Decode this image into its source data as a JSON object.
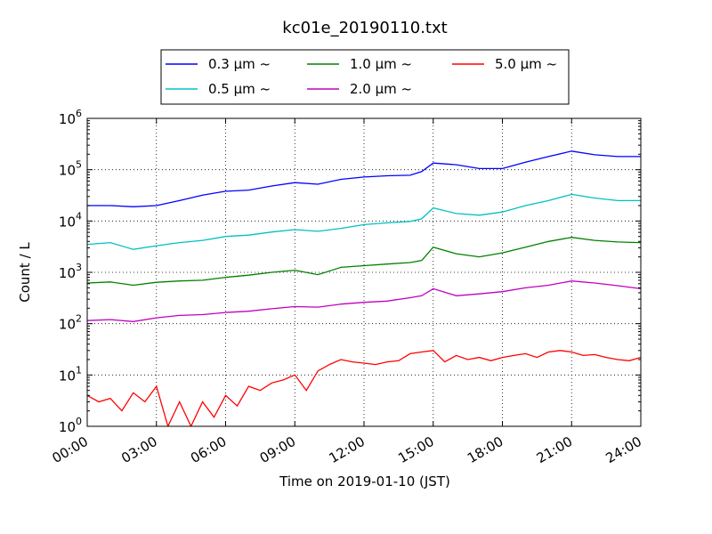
{
  "chart_data": {
    "type": "line",
    "title": "kc01e_20190110.txt",
    "xlabel": "Time on 2019-01-10 (JST)",
    "ylabel": "Count / L",
    "y_scale": "log",
    "ylim": [
      1,
      1000000
    ],
    "y_ticks": [
      {
        "value": 1,
        "base": "10",
        "exp": "0"
      },
      {
        "value": 10,
        "base": "10",
        "exp": "1"
      },
      {
        "value": 100,
        "base": "10",
        "exp": "2"
      },
      {
        "value": 1000,
        "base": "10",
        "exp": "3"
      },
      {
        "value": 10000,
        "base": "10",
        "exp": "4"
      },
      {
        "value": 100000,
        "base": "10",
        "exp": "5"
      },
      {
        "value": 1000000,
        "base": "10",
        "exp": "6"
      }
    ],
    "x_ticks": [
      "00:00",
      "03:00",
      "06:00",
      "09:00",
      "12:00",
      "15:00",
      "18:00",
      "21:00",
      "24:00"
    ],
    "x_tick_hours": [
      0,
      3,
      6,
      9,
      12,
      15,
      18,
      21,
      24
    ],
    "xlim": [
      0,
      24
    ],
    "grid": true,
    "legend_placement": "top-center",
    "series": [
      {
        "name": "0.3 μm ~",
        "color": "#0000ff",
        "points": [
          [
            0,
            20000
          ],
          [
            1,
            20000
          ],
          [
            2,
            19000
          ],
          [
            3,
            20000
          ],
          [
            4,
            25000
          ],
          [
            5,
            32000
          ],
          [
            6,
            38000
          ],
          [
            7,
            40000
          ],
          [
            8,
            48000
          ],
          [
            9,
            56000
          ],
          [
            10,
            52000
          ],
          [
            11,
            65000
          ],
          [
            12,
            72000
          ],
          [
            13,
            76000
          ],
          [
            14,
            78000
          ],
          [
            14.5,
            92000
          ],
          [
            15,
            135000
          ],
          [
            16,
            125000
          ],
          [
            17,
            105000
          ],
          [
            18,
            105000
          ],
          [
            19,
            140000
          ],
          [
            20,
            180000
          ],
          [
            21,
            230000
          ],
          [
            22,
            195000
          ],
          [
            23,
            180000
          ],
          [
            24,
            180000
          ]
        ]
      },
      {
        "name": "0.5 μm ~",
        "color": "#00c0c0",
        "points": [
          [
            0,
            3500
          ],
          [
            1,
            3800
          ],
          [
            2,
            2800
          ],
          [
            3,
            3300
          ],
          [
            4,
            3800
          ],
          [
            5,
            4200
          ],
          [
            6,
            5000
          ],
          [
            7,
            5300
          ],
          [
            8,
            6100
          ],
          [
            9,
            6800
          ],
          [
            10,
            6300
          ],
          [
            11,
            7200
          ],
          [
            12,
            8500
          ],
          [
            13,
            9200
          ],
          [
            14,
            9800
          ],
          [
            14.5,
            11000
          ],
          [
            15,
            18000
          ],
          [
            16,
            14000
          ],
          [
            17,
            13000
          ],
          [
            18,
            15000
          ],
          [
            19,
            20000
          ],
          [
            20,
            25000
          ],
          [
            21,
            33000
          ],
          [
            22,
            28000
          ],
          [
            23,
            25000
          ],
          [
            24,
            25000
          ]
        ]
      },
      {
        "name": "1.0 μm ~",
        "color": "#008000",
        "points": [
          [
            0,
            620
          ],
          [
            1,
            650
          ],
          [
            2,
            560
          ],
          [
            3,
            640
          ],
          [
            4,
            680
          ],
          [
            5,
            700
          ],
          [
            6,
            800
          ],
          [
            7,
            880
          ],
          [
            8,
            1000
          ],
          [
            9,
            1100
          ],
          [
            10,
            900
          ],
          [
            11,
            1250
          ],
          [
            12,
            1350
          ],
          [
            13,
            1450
          ],
          [
            14,
            1550
          ],
          [
            14.5,
            1700
          ],
          [
            15,
            3100
          ],
          [
            16,
            2300
          ],
          [
            17,
            2000
          ],
          [
            18,
            2400
          ],
          [
            19,
            3100
          ],
          [
            20,
            4000
          ],
          [
            21,
            4800
          ],
          [
            22,
            4200
          ],
          [
            23,
            3900
          ],
          [
            24,
            3800
          ]
        ]
      },
      {
        "name": "2.0 μm ~",
        "color": "#bf00bf",
        "points": [
          [
            0,
            115
          ],
          [
            1,
            120
          ],
          [
            2,
            110
          ],
          [
            3,
            130
          ],
          [
            4,
            145
          ],
          [
            5,
            150
          ],
          [
            6,
            165
          ],
          [
            7,
            175
          ],
          [
            8,
            195
          ],
          [
            9,
            215
          ],
          [
            10,
            210
          ],
          [
            11,
            240
          ],
          [
            12,
            260
          ],
          [
            13,
            275
          ],
          [
            14,
            320
          ],
          [
            14.5,
            350
          ],
          [
            15,
            480
          ],
          [
            16,
            350
          ],
          [
            17,
            380
          ],
          [
            18,
            420
          ],
          [
            19,
            500
          ],
          [
            20,
            560
          ],
          [
            21,
            680
          ],
          [
            22,
            620
          ],
          [
            23,
            550
          ],
          [
            24,
            480
          ]
        ]
      },
      {
        "name": "5.0 μm ~",
        "color": "#ff0000",
        "points": [
          [
            0,
            4
          ],
          [
            0.5,
            3
          ],
          [
            1,
            3.5
          ],
          [
            1.5,
            2
          ],
          [
            2,
            4.5
          ],
          [
            2.5,
            3
          ],
          [
            3,
            6
          ],
          [
            3.5,
            1
          ],
          [
            4,
            3
          ],
          [
            4.5,
            1
          ],
          [
            5,
            3
          ],
          [
            5.5,
            1.5
          ],
          [
            6,
            4
          ],
          [
            6.5,
            2.5
          ],
          [
            7,
            6
          ],
          [
            7.5,
            5
          ],
          [
            8,
            7
          ],
          [
            8.5,
            8
          ],
          [
            9,
            10
          ],
          [
            9.5,
            5
          ],
          [
            10,
            12
          ],
          [
            10.5,
            16
          ],
          [
            11,
            20
          ],
          [
            11.5,
            18
          ],
          [
            12,
            17
          ],
          [
            12.5,
            16
          ],
          [
            13,
            18
          ],
          [
            13.5,
            19
          ],
          [
            14,
            26
          ],
          [
            14.5,
            28
          ],
          [
            15,
            30
          ],
          [
            15.5,
            18
          ],
          [
            16,
            24
          ],
          [
            16.5,
            20
          ],
          [
            17,
            22
          ],
          [
            17.5,
            19
          ],
          [
            18,
            22
          ],
          [
            18.5,
            24
          ],
          [
            19,
            26
          ],
          [
            19.5,
            22
          ],
          [
            20,
            28
          ],
          [
            20.5,
            30
          ],
          [
            21,
            28
          ],
          [
            21.5,
            24
          ],
          [
            22,
            25
          ],
          [
            22.5,
            22
          ],
          [
            23,
            20
          ],
          [
            23.5,
            19
          ],
          [
            24,
            22
          ]
        ]
      }
    ]
  }
}
